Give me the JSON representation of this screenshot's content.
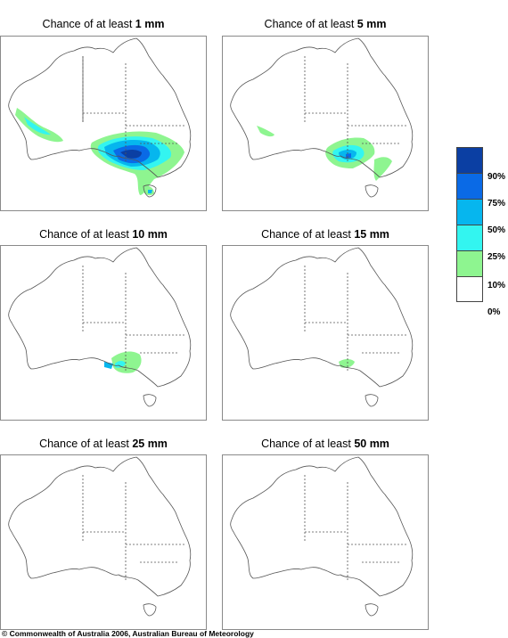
{
  "panels": [
    {
      "prefix": "Chance of at least ",
      "amount": "1 mm"
    },
    {
      "prefix": "Chance of at least ",
      "amount": "5 mm"
    },
    {
      "prefix": "Chance of at least ",
      "amount": "10 mm"
    },
    {
      "prefix": "Chance of at least ",
      "amount": "15 mm"
    },
    {
      "prefix": "Chance of at least ",
      "amount": "25 mm"
    },
    {
      "prefix": "Chance of at least ",
      "amount": "50 mm"
    }
  ],
  "legend": {
    "colors": [
      "#0b3fa3",
      "#0a6ae6",
      "#06b6ee",
      "#33f5f0",
      "#8ef590",
      "#ffffff"
    ],
    "labels": [
      "90%",
      "75%",
      "50%",
      "25%",
      "10%",
      "0%"
    ]
  },
  "copyright": "© Commonwealth of Australia 2006, Australian Bureau of Meteorology"
}
